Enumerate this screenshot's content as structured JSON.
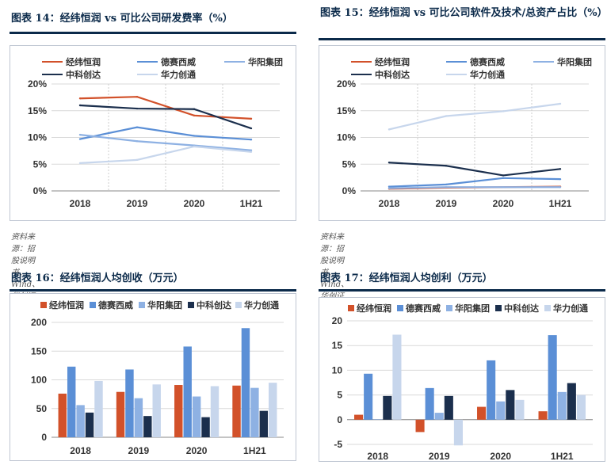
{
  "panels": [
    {
      "title": "图表 14：经纬恒润 vs 可比公司研发费率（%）",
      "source": "资料来源：招股说明书、Wind、华创证券"
    },
    {
      "title": "图表 15：经纬恒润 vs 可比公司软件及技术/总资产占比（%）",
      "source": "资料来源：招股说明书、Wind、华创证券"
    },
    {
      "title": "图表 16：经纬恒润人均创收（万元）",
      "source": ""
    },
    {
      "title": "图表 17：经纬恒润人均创利（万元）",
      "source": ""
    }
  ],
  "colors": {
    "经纬恒润": "#d2512a",
    "德赛西威": "#5b8fd6",
    "华阳集团": "#8eb1e3",
    "中科创达": "#1b2f4d",
    "华力创通": "#c7d6ec"
  },
  "chart_data": [
    {
      "type": "line",
      "categories": [
        "2018",
        "2019",
        "2020",
        "1H21"
      ],
      "yticks": [
        "0%",
        "5%",
        "10%",
        "15%",
        "20%"
      ],
      "ylim": [
        0,
        20
      ],
      "series": [
        {
          "name": "经纬恒润",
          "values": [
            17.3,
            17.6,
            14.1,
            13.5
          ]
        },
        {
          "name": "德赛西威",
          "values": [
            9.7,
            11.9,
            10.3,
            9.6
          ]
        },
        {
          "name": "华阳集团",
          "values": [
            10.5,
            9.3,
            8.5,
            7.6
          ]
        },
        {
          "name": "中科创达",
          "values": [
            16.0,
            15.4,
            15.3,
            11.7
          ]
        },
        {
          "name": "华力创通",
          "values": [
            5.2,
            5.8,
            8.3,
            7.3
          ]
        }
      ]
    },
    {
      "type": "line",
      "categories": [
        "2018",
        "2019",
        "2020",
        "1H21"
      ],
      "yticks": [
        "0%",
        "5%",
        "10%",
        "15%",
        "20%"
      ],
      "ylim": [
        0,
        20
      ],
      "series": [
        {
          "name": "经纬恒润",
          "values": [
            0.4,
            0.6,
            0.7,
            0.8
          ]
        },
        {
          "name": "德赛西威",
          "values": [
            0.8,
            1.2,
            2.4,
            2.2
          ]
        },
        {
          "name": "华阳集团",
          "values": [
            0.5,
            0.7,
            0.7,
            0.7
          ]
        },
        {
          "name": "中科创达",
          "values": [
            5.3,
            4.7,
            2.9,
            4.1
          ]
        },
        {
          "name": "华力创通",
          "values": [
            11.5,
            14.0,
            14.9,
            16.3
          ]
        }
      ]
    },
    {
      "type": "bar",
      "categories": [
        "2018",
        "2019",
        "2020",
        "1H21"
      ],
      "yticks": [
        "0",
        "50",
        "100",
        "150",
        "200"
      ],
      "ylim": [
        0,
        200
      ],
      "series": [
        {
          "name": "经纬恒润",
          "values": [
            76,
            79,
            91,
            90
          ]
        },
        {
          "name": "德赛西威",
          "values": [
            123,
            118,
            158,
            190
          ]
        },
        {
          "name": "华阳集团",
          "values": [
            56,
            68,
            71,
            86
          ]
        },
        {
          "name": "中科创达",
          "values": [
            43,
            37,
            35,
            46
          ]
        },
        {
          "name": "华力创通",
          "values": [
            98,
            92,
            89,
            95
          ]
        }
      ]
    },
    {
      "type": "bar",
      "categories": [
        "2018",
        "2019",
        "2020",
        "1H21"
      ],
      "yticks": [
        "-5",
        "0",
        "5",
        "10",
        "15",
        "20"
      ],
      "ylim": [
        -5,
        20
      ],
      "series": [
        {
          "name": "经纬恒润",
          "values": [
            1.0,
            -2.5,
            2.6,
            1.7
          ]
        },
        {
          "name": "德赛西威",
          "values": [
            9.3,
            6.4,
            12.0,
            17.1
          ]
        },
        {
          "name": "华阳集团",
          "values": [
            0.1,
            1.4,
            3.7,
            5.6
          ]
        },
        {
          "name": "中科创达",
          "values": [
            4.8,
            4.8,
            6.0,
            7.4
          ]
        },
        {
          "name": "华力创通",
          "values": [
            17.2,
            -5.2,
            4.0,
            5.0
          ]
        }
      ]
    }
  ]
}
